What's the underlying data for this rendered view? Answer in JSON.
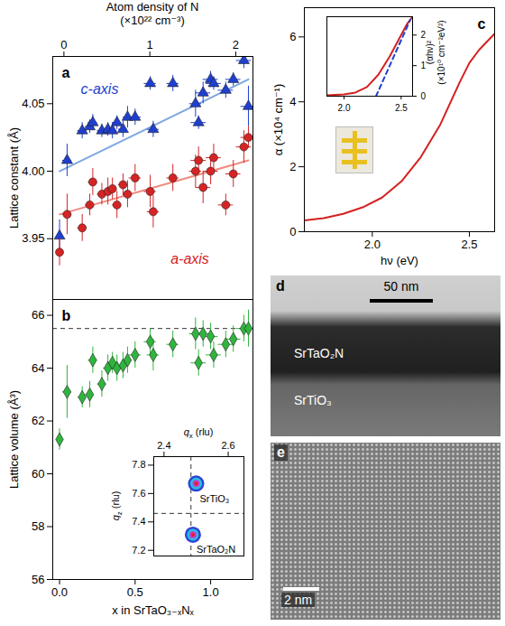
{
  "chart_data": [
    {
      "panel": "a",
      "type": "scatter",
      "x2_label": [
        "Atom density of N",
        "(×10²² cm⁻³)"
      ],
      "x2lim": [
        -0.13,
        2.2
      ],
      "x2ticks": [
        0,
        1,
        2
      ],
      "xlim": [
        -0.045,
        1.28
      ],
      "ylim": [
        3.905,
        4.085
      ],
      "yticks": [
        3.95,
        {
          "value": 4,
          "label": "4.00"
        },
        4.05
      ],
      "y_label": "Lattice constant (Å)",
      "series": [
        {
          "type": "line",
          "color": "#7fa8e0",
          "x": [
            0,
            1.25
          ],
          "values": [
            4.0,
            4.068
          ]
        },
        {
          "type": "line",
          "color": "#f08a80",
          "x": [
            0,
            1.25
          ],
          "values": [
            3.968,
            4.008
          ]
        },
        {
          "name": "c-axis",
          "type": "scatter",
          "color": "#1f3fd0",
          "marker": "triangle",
          "x": [
            0.0,
            0.05,
            0.15,
            0.2,
            0.22,
            0.28,
            0.32,
            0.35,
            0.38,
            0.42,
            0.45,
            0.5,
            0.6,
            0.62,
            0.75,
            0.9,
            0.92,
            0.95,
            1.0,
            1.02,
            1.1,
            1.15,
            1.22,
            1.25
          ],
          "values": [
            3.952,
            4.008,
            4.03,
            4.033,
            4.036,
            4.03,
            4.031,
            4.03,
            4.036,
            4.031,
            4.04,
            4.04,
            4.065,
            4.031,
            4.065,
            4.05,
            4.036,
            4.058,
            4.068,
            4.065,
            4.06,
            4.068,
            4.082,
            4.048
          ],
          "yerr": [
            0.012,
            0.012,
            0.006,
            0.005,
            0.006,
            0.005,
            0.005,
            0.006,
            0.005,
            0.006,
            0.008,
            0.006,
            0.005,
            0.006,
            0.006,
            0.01,
            0.005,
            0.008,
            0.006,
            0.005,
            0.006,
            0.005,
            0.006,
            0.015
          ],
          "xerr": [
            0.02,
            0.03,
            0.03,
            0.03,
            0.03,
            0.03,
            0.03,
            0.03,
            0.03,
            0.03,
            0.03,
            0.04,
            0.04,
            0.04,
            0.04,
            0.04,
            0.05,
            0.05,
            0.05,
            0.05,
            0.05,
            0.05,
            0.05,
            0.05
          ]
        },
        {
          "name": "a-axis",
          "type": "scatter",
          "color": "#d62424",
          "marker": "circle",
          "x": [
            0.0,
            0.05,
            0.15,
            0.2,
            0.22,
            0.28,
            0.32,
            0.35,
            0.38,
            0.42,
            0.45,
            0.5,
            0.6,
            0.62,
            0.75,
            0.9,
            0.92,
            0.95,
            1.0,
            1.02,
            1.1,
            1.15,
            1.22,
            1.25
          ],
          "values": [
            3.94,
            3.968,
            3.958,
            3.975,
            3.992,
            3.983,
            3.985,
            3.987,
            3.975,
            3.99,
            3.983,
            3.995,
            3.985,
            3.97,
            3.995,
            4.0,
            4.008,
            3.988,
            4.0,
            4.01,
            3.975,
            3.998,
            4.018,
            4.025
          ],
          "yerr": [
            0.01,
            0.015,
            0.01,
            0.008,
            0.01,
            0.008,
            0.01,
            0.008,
            0.01,
            0.008,
            0.01,
            0.01,
            0.012,
            0.012,
            0.01,
            0.012,
            0.01,
            0.012,
            0.01,
            0.01,
            0.008,
            0.01,
            0.012,
            0.008
          ],
          "xerr": [
            0.02,
            0.03,
            0.03,
            0.03,
            0.03,
            0.03,
            0.03,
            0.03,
            0.03,
            0.03,
            0.03,
            0.04,
            0.04,
            0.04,
            0.04,
            0.04,
            0.05,
            0.05,
            0.05,
            0.05,
            0.05,
            0.05,
            0.05,
            0.05
          ]
        }
      ]
    },
    {
      "panel": "b",
      "type": "scatter",
      "x_label": "x in SrTaO₃₋ₓNₓ",
      "xlim": [
        -0.045,
        1.28
      ],
      "xticks": [
        {
          "value": 0,
          "label": "0.0"
        },
        0.5,
        {
          "value": 1,
          "label": "1.0"
        }
      ],
      "ylim": [
        56,
        66.6
      ],
      "yticks": [
        56,
        58,
        60,
        62,
        64,
        66
      ],
      "y_label": "Lattice volume (Å³)",
      "rules": [
        {
          "axis": "y",
          "value": 65.5,
          "line_style": "dashed"
        }
      ],
      "series": [
        {
          "type": "scatter",
          "color": "#2fb53e",
          "marker": "diamond",
          "x": [
            0.0,
            0.05,
            0.15,
            0.2,
            0.22,
            0.28,
            0.32,
            0.35,
            0.38,
            0.42,
            0.45,
            0.5,
            0.6,
            0.62,
            0.75,
            0.9,
            0.92,
            0.95,
            1.0,
            1.02,
            1.1,
            1.15,
            1.22,
            1.25
          ],
          "values": [
            61.3,
            63.1,
            62.9,
            63.0,
            64.3,
            63.4,
            64.0,
            64.2,
            64.0,
            64.1,
            64.3,
            64.5,
            65.0,
            64.5,
            64.9,
            65.3,
            64.2,
            65.3,
            65.2,
            64.5,
            64.9,
            65.1,
            65.5,
            65.5
          ],
          "yerr": [
            0.4,
            1.0,
            0.4,
            0.5,
            0.5,
            0.5,
            0.5,
            0.4,
            0.5,
            0.5,
            0.5,
            0.5,
            0.5,
            0.6,
            0.5,
            0.6,
            0.5,
            0.5,
            0.5,
            0.5,
            0.5,
            0.5,
            0.5,
            0.7
          ],
          "xerr": [
            0.02,
            0.03,
            0.03,
            0.03,
            0.03,
            0.03,
            0.03,
            0.03,
            0.03,
            0.03,
            0.03,
            0.04,
            0.04,
            0.04,
            0.04,
            0.04,
            0.05,
            0.05,
            0.05,
            0.05,
            0.05,
            0.05,
            0.05,
            0.05
          ]
        }
      ],
      "inset": {
        "type": "scatter",
        "x_label": "qx (rlu)",
        "y_label": "qz (rlu)",
        "xlim": [
          2.368,
          2.649
        ],
        "xticks": [
          2.4,
          2.6
        ],
        "ylim": [
          7.16,
          7.86
        ],
        "yticks": [
          7.2,
          7.4,
          7.6,
          7.8
        ],
        "rules": [
          {
            "axis": "x",
            "value": 2.484,
            "line_style": "dashed"
          },
          {
            "axis": "y",
            "value": 7.46,
            "line_style": "dashed"
          }
        ],
        "peaks": {
          "labels": [
            "SrTiO₃",
            "SrTaO₂N"
          ],
          "x": [
            2.5,
            2.49
          ],
          "values": [
            7.67,
            7.31
          ]
        }
      }
    },
    {
      "panel": "c",
      "type": "line",
      "x_label": "hν (eV)",
      "y_label": "α (×10⁴ cm⁻¹)",
      "xlim": [
        1.65,
        2.63
      ],
      "xticks": [
        {
          "value": 2,
          "label": "2.0"
        },
        2.5
      ],
      "ylim": [
        0,
        6.9
      ],
      "yticks": [
        0,
        2,
        4,
        6
      ],
      "series": [
        {
          "type": "line",
          "color": "#d42020",
          "line_style": "solid",
          "x": [
            1.65,
            1.75,
            1.85,
            1.95,
            2.05,
            2.15,
            2.25,
            2.35,
            2.45,
            2.5,
            2.55,
            2.63
          ],
          "values": [
            0.35,
            0.42,
            0.55,
            0.75,
            1.05,
            1.55,
            2.3,
            3.3,
            4.6,
            5.2,
            5.6,
            6.1
          ]
        }
      ],
      "inset": {
        "type": "line",
        "y_label": [
          "(αhν)²",
          "(×10¹⁰ cm⁻²eV²)"
        ],
        "xlim": [
          1.85,
          2.6
        ],
        "xticks": [
          {
            "value": 2,
            "label": "2.0"
          },
          2.5
        ],
        "ylim": [
          0,
          2.6
        ],
        "yticks": [
          0,
          1,
          2
        ],
        "series": [
          {
            "type": "line",
            "color": "#d42020",
            "line_style": "solid",
            "x": [
              1.85,
              2.0,
              2.1,
              2.2,
              2.3,
              2.4,
              2.5,
              2.55,
              2.6
            ],
            "values": [
              0.03,
              0.06,
              0.12,
              0.3,
              0.7,
              1.3,
              2.0,
              2.35,
              2.6
            ]
          },
          {
            "type": "line",
            "color": "#2040d0",
            "line_style": "dashed",
            "x": [
              2.28,
              2.58
            ],
            "values": [
              0,
              2.5
            ]
          }
        ]
      }
    }
  ],
  "images": [
    {
      "panel": "d",
      "scale_bar": "50 nm",
      "labels": [
        "SrTaO₂N",
        "SrTiO₃"
      ]
    },
    {
      "panel": "e",
      "scale_bar": "2 nm"
    }
  ]
}
